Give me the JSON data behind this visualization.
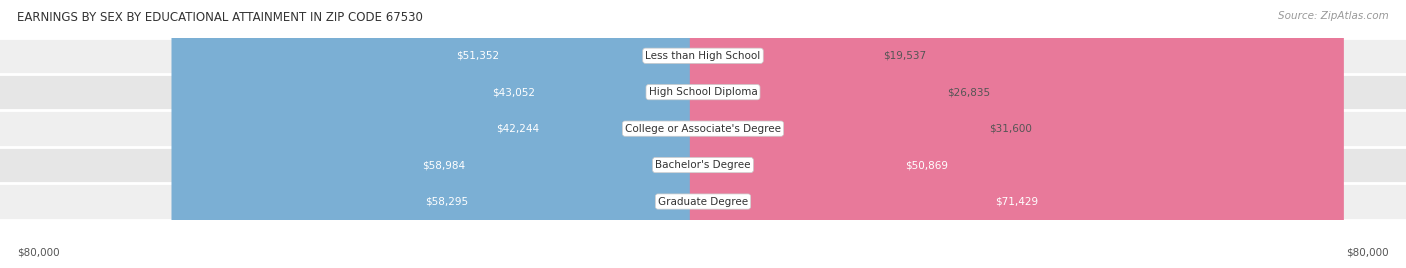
{
  "title": "EARNINGS BY SEX BY EDUCATIONAL ATTAINMENT IN ZIP CODE 67530",
  "source": "Source: ZipAtlas.com",
  "categories": [
    "Less than High School",
    "High School Diploma",
    "College or Associate's Degree",
    "Bachelor's Degree",
    "Graduate Degree"
  ],
  "male_values": [
    51352,
    43052,
    42244,
    58984,
    58295
  ],
  "female_values": [
    19537,
    26835,
    31600,
    50869,
    71429
  ],
  "male_color": "#7BAFD4",
  "female_color": "#E8799A",
  "max_value": 80000,
  "bar_height": 0.62,
  "row_colors": [
    "#EFEFEF",
    "#E6E6E6"
  ],
  "background_color": "#FFFFFF",
  "axis_label_left": "$80,000",
  "axis_label_right": "$80,000",
  "title_fontsize": 8.5,
  "source_fontsize": 7.5,
  "label_fontsize": 7.5,
  "cat_fontsize": 7.5
}
